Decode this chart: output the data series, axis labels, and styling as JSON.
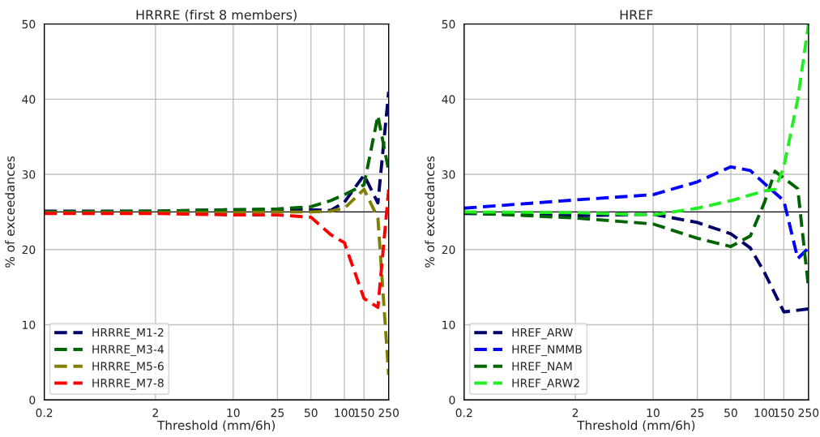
{
  "chart_data": [
    {
      "type": "line",
      "title": "HRRRE (first 8 members)",
      "xlabel": "Threshold (mm/6h)",
      "ylabel": "% of exceedances",
      "log": "x",
      "xlim": [
        0.2,
        250
      ],
      "xticks": [
        0.2,
        2,
        10,
        25,
        50,
        100,
        150,
        250
      ],
      "ylim": [
        0,
        50
      ],
      "yticks": [
        0,
        10,
        20,
        30,
        40,
        50
      ],
      "grid": true,
      "legend": "bottom left",
      "line_style": "dashed",
      "ref_lines": [
        {
          "axis": "y",
          "value": 25,
          "color": "#000000",
          "line_style": "solid"
        }
      ],
      "series": [
        {
          "name": "HRRRE_M1-2",
          "color": "#000066",
          "x": [
            0.2,
            2,
            10,
            25,
            50,
            75,
            100,
            150,
            200,
            250
          ],
          "values": [
            25.1,
            25.1,
            25.3,
            25.3,
            25.3,
            25.2,
            26.3,
            29.9,
            26.2,
            41
          ]
        },
        {
          "name": "HRRRE_M3-4",
          "color": "#006400",
          "x": [
            0.2,
            2,
            10,
            25,
            50,
            75,
            100,
            150,
            200,
            250
          ],
          "values": [
            25.0,
            25.1,
            25.3,
            25.4,
            25.7,
            26.5,
            27.3,
            28.6,
            37.8,
            30.5
          ]
        },
        {
          "name": "HRRRE_M5-6",
          "color": "#808000",
          "x": [
            0.2,
            2,
            10,
            25,
            50,
            75,
            100,
            150,
            200,
            250
          ],
          "values": [
            24.9,
            24.9,
            24.9,
            25.0,
            25.0,
            25.1,
            25.5,
            28,
            24.2,
            3.3
          ]
        },
        {
          "name": "HRRRE_M7-8",
          "color": "#ff0000",
          "x": [
            0.2,
            2,
            10,
            25,
            50,
            75,
            100,
            150,
            200,
            250
          ],
          "values": [
            24.8,
            24.8,
            24.6,
            24.6,
            24.3,
            22,
            20.9,
            13.5,
            12.3,
            28
          ]
        }
      ]
    },
    {
      "type": "line",
      "title": "HREF",
      "xlabel": "Threshold (mm/6h)",
      "ylabel": "% of exceedances",
      "log": "x",
      "xlim": [
        0.2,
        250
      ],
      "xticks": [
        0.2,
        2,
        10,
        25,
        50,
        100,
        150,
        250
      ],
      "ylim": [
        0,
        50
      ],
      "yticks": [
        0,
        10,
        20,
        30,
        40,
        50
      ],
      "grid": true,
      "legend": "bottom left",
      "line_style": "dashed",
      "ref_lines": [
        {
          "axis": "y",
          "value": 25,
          "color": "#000000",
          "line_style": "solid"
        }
      ],
      "series": [
        {
          "name": "HREF_ARW",
          "color": "#000066",
          "x": [
            0.2,
            2,
            10,
            25,
            50,
            75,
            100,
            150,
            250
          ],
          "values": [
            24.8,
            24.5,
            24.7,
            23.6,
            22.1,
            20.2,
            17,
            11.7,
            12.1
          ]
        },
        {
          "name": "HREF_NMMB",
          "color": "#0000ff",
          "x": [
            0.2,
            2,
            10,
            25,
            50,
            75,
            100,
            150,
            200,
            250
          ],
          "values": [
            25.5,
            26.6,
            27.3,
            29,
            31,
            30.5,
            28.8,
            26.5,
            18.8,
            20.2
          ]
        },
        {
          "name": "HREF_NAM",
          "color": "#006400",
          "x": [
            0.2,
            2,
            10,
            25,
            50,
            75,
            100,
            125,
            200,
            250
          ],
          "values": [
            24.9,
            24.2,
            23.4,
            21.5,
            20.4,
            21.8,
            26.2,
            30.4,
            28.1,
            14.9
          ]
        },
        {
          "name": "HREF_ARW2",
          "color": "#22ee22",
          "x": [
            0.2,
            2,
            10,
            25,
            50,
            100,
            125,
            150,
            200,
            250
          ],
          "values": [
            25,
            24.9,
            24.6,
            25.5,
            26.5,
            27.8,
            28,
            31,
            40,
            50
          ]
        }
      ]
    }
  ]
}
